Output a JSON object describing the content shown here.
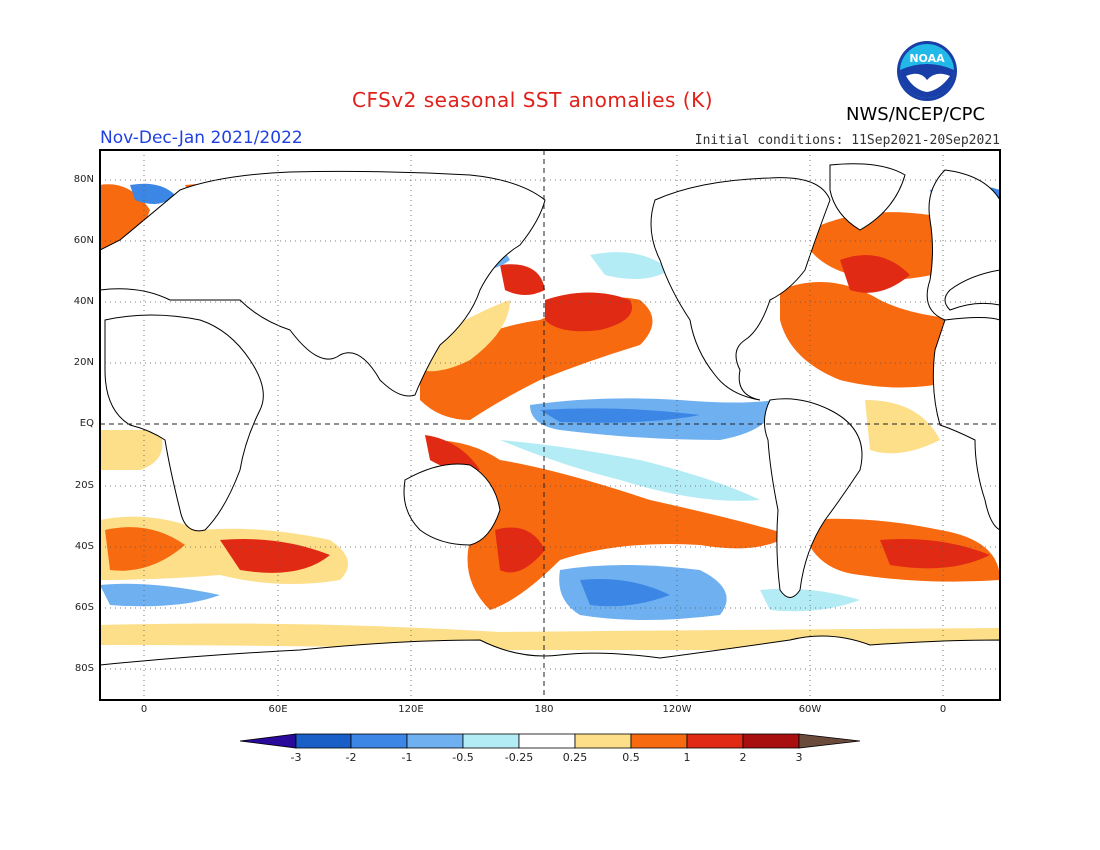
{
  "header": {
    "title": "CFSv2 seasonal SST anomalies (K)",
    "season": "Nov-Dec-Jan 2021/2022",
    "initial_conditions": "Initial conditions: 11Sep2021-20Sep2021",
    "agency": "NWS/NCEP/CPC",
    "logo_text": "NOAA"
  },
  "map": {
    "lat_labels": [
      "80N",
      "60N",
      "40N",
      "20N",
      "EQ",
      "20S",
      "40S",
      "60S",
      "80S"
    ],
    "lon_labels": [
      "0",
      "60E",
      "120E",
      "180",
      "120W",
      "60W",
      "0"
    ]
  },
  "colorbar": {
    "labels": [
      "-3",
      "-2",
      "-1",
      "-0.5",
      "-0.25",
      "0.25",
      "0.5",
      "1",
      "2",
      "3"
    ],
    "colors": [
      "#2a0a9a",
      "#1a5fc8",
      "#3c86e6",
      "#6fb0f0",
      "#b4ecf6",
      "#ffffff",
      "#fddf8a",
      "#f86a10",
      "#e02a14",
      "#a81010",
      "#6a4a3a"
    ]
  }
}
